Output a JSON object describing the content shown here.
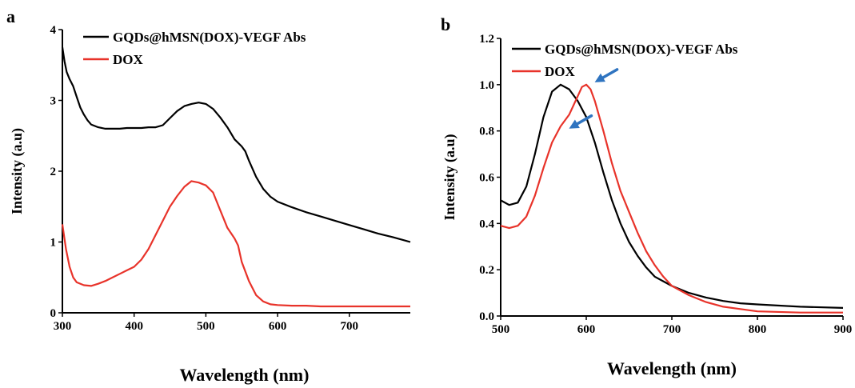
{
  "chart_data": [
    {
      "panel": "a",
      "type": "line",
      "xlabel": "Wavelength (nm)",
      "ylabel": "Intensity (a.u)",
      "xlim": [
        300,
        785
      ],
      "ylim": [
        0,
        4
      ],
      "xticks": [
        "300",
        "400",
        "500",
        "600",
        "700"
      ],
      "yticks": [
        "0",
        "1",
        "2",
        "3",
        "4"
      ],
      "legend_position": "top-left",
      "series": [
        {
          "name": "GQDs@hMSN(DOX)-VEGF Abs",
          "color": "#000000",
          "x": [
            300,
            303,
            306,
            310,
            315,
            320,
            325,
            330,
            335,
            340,
            350,
            360,
            370,
            380,
            390,
            400,
            410,
            420,
            430,
            440,
            450,
            460,
            470,
            480,
            490,
            500,
            510,
            520,
            530,
            540,
            550,
            555,
            560,
            570,
            580,
            590,
            600,
            620,
            640,
            660,
            680,
            700,
            720,
            740,
            760,
            785
          ],
          "y": [
            3.75,
            3.55,
            3.4,
            3.3,
            3.2,
            3.05,
            2.9,
            2.8,
            2.72,
            2.66,
            2.62,
            2.6,
            2.6,
            2.6,
            2.61,
            2.61,
            2.61,
            2.62,
            2.62,
            2.65,
            2.75,
            2.85,
            2.92,
            2.95,
            2.97,
            2.95,
            2.88,
            2.76,
            2.62,
            2.45,
            2.35,
            2.28,
            2.15,
            1.92,
            1.75,
            1.64,
            1.57,
            1.49,
            1.42,
            1.36,
            1.3,
            1.24,
            1.18,
            1.12,
            1.07,
            1.0
          ]
        },
        {
          "name": "DOX",
          "color": "#e8332a",
          "x": [
            300,
            305,
            310,
            315,
            320,
            330,
            340,
            350,
            360,
            370,
            380,
            390,
            400,
            410,
            420,
            430,
            440,
            450,
            460,
            470,
            480,
            490,
            500,
            510,
            520,
            530,
            540,
            545,
            550,
            560,
            570,
            580,
            590,
            600,
            620,
            640,
            660,
            680,
            700,
            740,
            785
          ],
          "y": [
            1.25,
            0.9,
            0.65,
            0.5,
            0.43,
            0.39,
            0.38,
            0.41,
            0.45,
            0.5,
            0.55,
            0.6,
            0.65,
            0.75,
            0.9,
            1.1,
            1.3,
            1.5,
            1.65,
            1.78,
            1.86,
            1.84,
            1.8,
            1.7,
            1.45,
            1.2,
            1.05,
            0.95,
            0.72,
            0.45,
            0.25,
            0.16,
            0.12,
            0.11,
            0.1,
            0.1,
            0.09,
            0.09,
            0.09,
            0.09,
            0.09
          ]
        }
      ]
    },
    {
      "panel": "b",
      "type": "line",
      "xlabel": "Wavelength (nm)",
      "ylabel": "Intensity (a.u)",
      "xlim": [
        500,
        900
      ],
      "ylim": [
        0,
        1.2
      ],
      "xticks": [
        "500",
        "600",
        "700",
        "800",
        "900"
      ],
      "yticks": [
        "0.0",
        "0.2",
        "0.4",
        "0.6",
        "0.8",
        "1.0",
        "1.2"
      ],
      "legend_position": "top-left",
      "annotations": [
        {
          "type": "arrow",
          "color": "#2f74c0",
          "target_x": 605,
          "target_y": 1.0
        },
        {
          "type": "arrow",
          "color": "#2f74c0",
          "target_x": 575,
          "target_y": 0.8
        }
      ],
      "series": [
        {
          "name": "GQDs@hMSN(DOX)-VEGF Abs",
          "color": "#000000",
          "x": [
            500,
            510,
            520,
            530,
            540,
            550,
            560,
            570,
            580,
            590,
            600,
            610,
            620,
            630,
            640,
            650,
            660,
            670,
            680,
            690,
            700,
            720,
            740,
            760,
            780,
            800,
            850,
            900
          ],
          "y": [
            0.5,
            0.48,
            0.49,
            0.56,
            0.7,
            0.86,
            0.97,
            1.0,
            0.98,
            0.93,
            0.86,
            0.75,
            0.62,
            0.5,
            0.4,
            0.32,
            0.26,
            0.21,
            0.17,
            0.15,
            0.13,
            0.1,
            0.08,
            0.065,
            0.055,
            0.05,
            0.04,
            0.035
          ]
        },
        {
          "name": "DOX",
          "color": "#e8332a",
          "x": [
            500,
            510,
            520,
            530,
            540,
            550,
            560,
            570,
            580,
            590,
            595,
            600,
            605,
            610,
            620,
            630,
            640,
            650,
            660,
            670,
            680,
            690,
            700,
            720,
            740,
            760,
            780,
            800,
            850,
            900
          ],
          "y": [
            0.39,
            0.38,
            0.39,
            0.43,
            0.52,
            0.64,
            0.75,
            0.82,
            0.87,
            0.95,
            0.99,
            1.0,
            0.98,
            0.93,
            0.8,
            0.66,
            0.54,
            0.45,
            0.36,
            0.28,
            0.22,
            0.17,
            0.13,
            0.09,
            0.06,
            0.04,
            0.03,
            0.02,
            0.015,
            0.015
          ]
        }
      ]
    }
  ]
}
